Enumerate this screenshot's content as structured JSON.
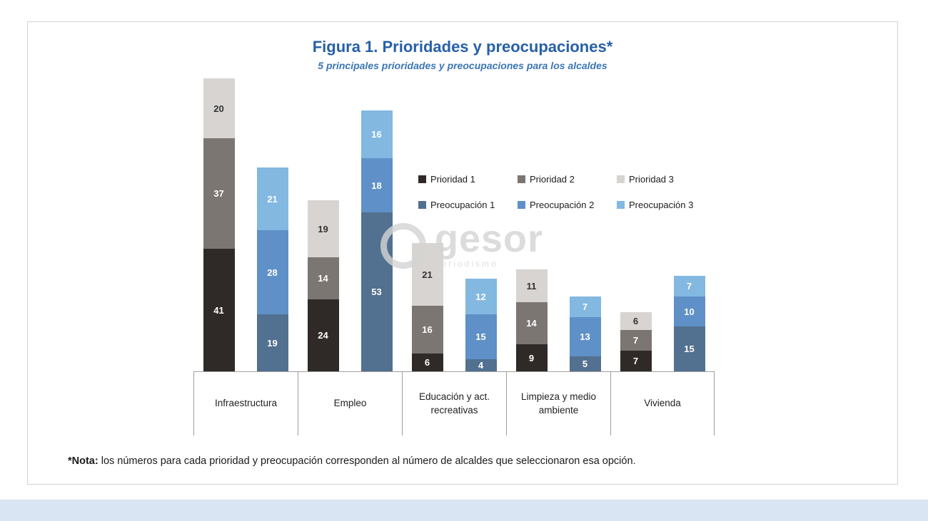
{
  "figure": {
    "title": "Figura 1. Prioridades y preocupaciones*",
    "subtitle": "5 principales prioridades y preocupaciones para los alcaldes",
    "note_label": "*Nota:",
    "note_text": " los números para cada prioridad y preocupación corresponden al número de alcaldes que seleccionaron esa opción."
  },
  "watermark": {
    "text": "gesor",
    "subtext": "periodismo"
  },
  "colors": {
    "title_blue": "#2760a8",
    "subtitle_blue": "#3a76b4",
    "axis_gray": "#9f9f9f",
    "bottom_strip": "#d9e5f2"
  },
  "chart_data": {
    "type": "bar",
    "subtype": "stacked-paired",
    "title": "Figura 1. Prioridades y preocupaciones*",
    "subtitle": "5 principales prioridades y preocupaciones para los alcaldes",
    "categories": [
      "Infraestructura",
      "Empleo",
      "Educación y act. recreativas",
      "Limpieza y medio ambiente",
      "Vivienda"
    ],
    "series": [
      {
        "name": "Prioridad 1",
        "color": "#2f2a28",
        "label_color": "#ffffff",
        "values": [
          41,
          24,
          6,
          9,
          7
        ]
      },
      {
        "name": "Prioridad 2",
        "color": "#7c7673",
        "label_color": "#ffffff",
        "values": [
          37,
          14,
          16,
          14,
          7
        ]
      },
      {
        "name": "Prioridad 3",
        "color": "#d7d4d2",
        "label_color": "#333333",
        "values": [
          20,
          19,
          21,
          11,
          6
        ]
      },
      {
        "name": "Preocupación 1",
        "color": "#52708f",
        "label_color": "#ffffff",
        "values": [
          19,
          53,
          4,
          5,
          15
        ]
      },
      {
        "name": "Preocupación 2",
        "color": "#5f90c7",
        "label_color": "#ffffff",
        "values": [
          28,
          18,
          15,
          13,
          10
        ]
      },
      {
        "name": "Preocupación 3",
        "color": "#83b8e1",
        "label_color": "#ffffff",
        "values": [
          21,
          16,
          12,
          7,
          7
        ]
      }
    ],
    "stacks": [
      [
        "Prioridad 1",
        "Prioridad 2",
        "Prioridad 3"
      ],
      [
        "Preocupación 1",
        "Preocupación 2",
        "Preocupación 3"
      ]
    ],
    "ylim": [
      0,
      100
    ],
    "grid": false,
    "value_labels": true,
    "legend_position": "inside-upper-right",
    "note": "*Nota: los números para cada prioridad y preocupación corresponden al número de alcaldes que seleccionaron esa opción."
  }
}
